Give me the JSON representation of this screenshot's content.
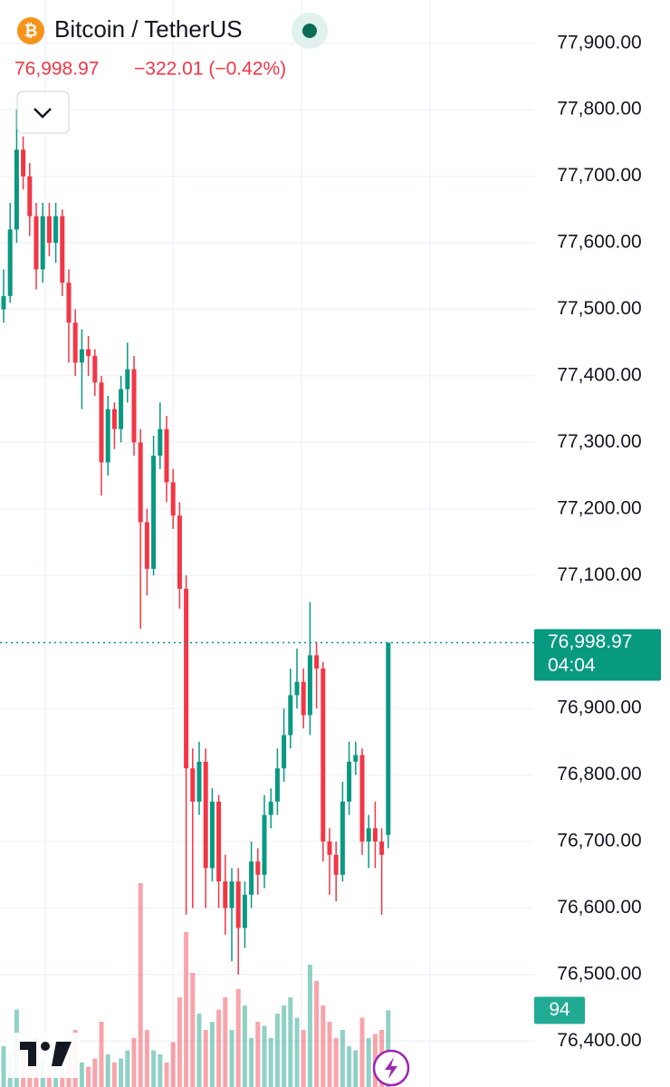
{
  "chart_data": {
    "type": "candlestick",
    "title": "Bitcoin / TetherUS",
    "change": "−322.01 (−0.42%)",
    "countdown": "04:04",
    "current_price": {
      "value": 76998.97,
      "label": "76,998.97"
    },
    "up_color": "#089981",
    "down_color": "#f23645",
    "grid": true,
    "ylim": [
      76331,
      77965
    ],
    "yticks": [
      {
        "value": 76400,
        "label": "76,400.00"
      },
      {
        "value": 76500,
        "label": "76,500.00"
      },
      {
        "value": 76600,
        "label": "76,600.00"
      },
      {
        "value": 76700,
        "label": "76,700.00"
      },
      {
        "value": 76800,
        "label": "76,800.00"
      },
      {
        "value": 76900,
        "label": "76,900.00"
      },
      {
        "value": 77000,
        "label": "77,000.00"
      },
      {
        "value": 77100,
        "label": "77,100.00"
      },
      {
        "value": 77200,
        "label": "77,200.00"
      },
      {
        "value": 77300,
        "label": "77,300.00"
      },
      {
        "value": 77400,
        "label": "77,400.00"
      },
      {
        "value": 77500,
        "label": "77,500.00"
      },
      {
        "value": 77600,
        "label": "77,600.00"
      },
      {
        "value": 77700,
        "label": "77,700.00"
      },
      {
        "value": 77800,
        "label": "77,800.00"
      },
      {
        "value": 77900,
        "label": "77,900.00"
      }
    ],
    "open": [
      77500,
      77520,
      77620,
      77740,
      77700,
      77640,
      77560,
      77640,
      77600,
      77640,
      77540,
      77480,
      77420,
      77440,
      77430,
      77390,
      77270,
      77350,
      77320,
      77380,
      77410,
      77300,
      77180,
      77110,
      77280,
      77320,
      77240,
      77190,
      77080,
      76810,
      76760,
      76820,
      76660,
      76760,
      76640,
      76600,
      76640,
      76570,
      76620,
      76670,
      76650,
      76740,
      76760,
      76810,
      76860,
      76920,
      76940,
      76890,
      76980,
      76960,
      76700,
      76680,
      76650,
      76760,
      76820,
      76830,
      76700,
      76720,
      76700,
      76710
    ],
    "high": [
      77560,
      77660,
      77800,
      77760,
      77720,
      77660,
      77660,
      77660,
      77660,
      77650,
      77560,
      77500,
      77470,
      77460,
      77440,
      77400,
      77370,
      77360,
      77400,
      77450,
      77430,
      77320,
      77200,
      77310,
      77360,
      77340,
      77260,
      77210,
      77100,
      76840,
      76850,
      76840,
      76780,
      76770,
      76680,
      76660,
      76660,
      76640,
      76700,
      76690,
      76770,
      76780,
      76840,
      76900,
      76960,
      76990,
      76960,
      77060,
      77000,
      76970,
      76720,
      76700,
      76790,
      76850,
      76850,
      76840,
      76740,
      76760,
      76720,
      76998.97
    ],
    "low": [
      77480,
      77510,
      77600,
      77680,
      77610,
      77530,
      77540,
      77580,
      77570,
      77520,
      77420,
      77400,
      77350,
      77400,
      77370,
      77220,
      77250,
      77290,
      77300,
      77360,
      77280,
      77020,
      77070,
      77100,
      77260,
      77210,
      77170,
      77050,
      76590,
      76600,
      76740,
      76600,
      76640,
      76600,
      76560,
      76520,
      76500,
      76540,
      76600,
      76620,
      76630,
      76720,
      76740,
      76790,
      76840,
      76900,
      76870,
      76860,
      76900,
      76670,
      76620,
      76610,
      76640,
      76740,
      76800,
      76680,
      76660,
      76660,
      76590,
      76690
    ],
    "close": [
      77520,
      77620,
      77740,
      77700,
      77640,
      77560,
      77640,
      77600,
      77640,
      77540,
      77480,
      77420,
      77440,
      77430,
      77390,
      77270,
      77350,
      77320,
      77380,
      77410,
      77300,
      77180,
      77110,
      77280,
      77320,
      77240,
      77190,
      77080,
      76810,
      76760,
      76820,
      76660,
      76760,
      76640,
      76600,
      76640,
      76570,
      76620,
      76670,
      76650,
      76740,
      76760,
      76810,
      76860,
      76920,
      76940,
      76890,
      76980,
      76960,
      76700,
      76680,
      76650,
      76760,
      76820,
      76830,
      76700,
      76720,
      76700,
      76680,
      76998.97
    ],
    "volume": [
      50,
      40,
      95,
      45,
      30,
      60,
      35,
      25,
      40,
      20,
      55,
      70,
      30,
      25,
      35,
      80,
      40,
      30,
      35,
      45,
      60,
      250,
      70,
      45,
      40,
      30,
      55,
      110,
      190,
      140,
      90,
      70,
      80,
      95,
      110,
      70,
      120,
      100,
      60,
      80,
      75,
      60,
      90,
      100,
      110,
      85,
      70,
      150,
      130,
      100,
      80,
      60,
      70,
      50,
      45,
      85,
      60,
      65,
      70,
      94
    ]
  }
}
